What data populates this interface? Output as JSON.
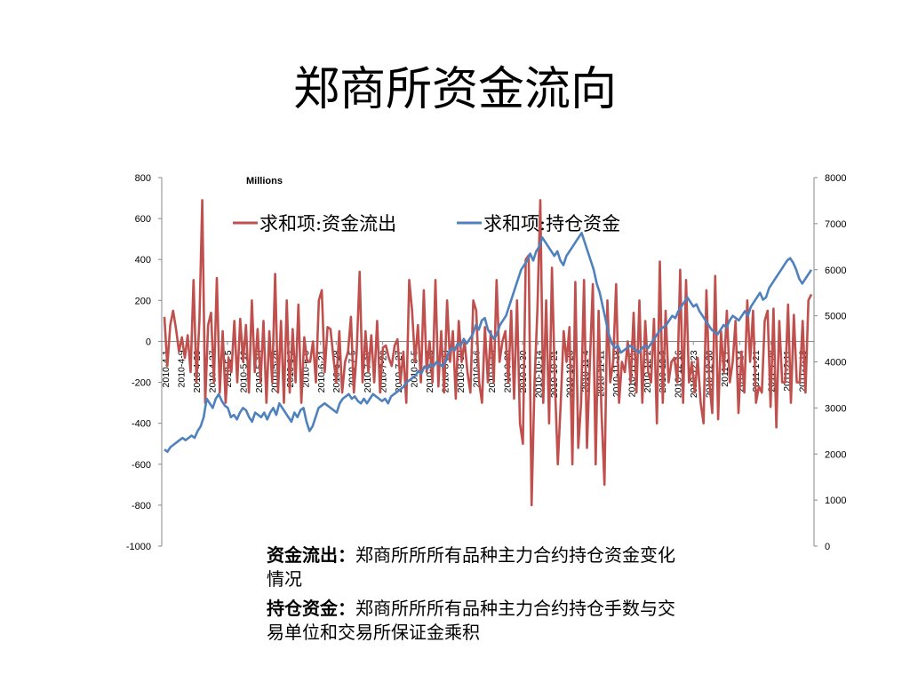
{
  "slide": {
    "title": "郑商所资金流向",
    "notes": [
      {
        "term": "资金流出：",
        "text": "郑商所所所有品种主力合约持仓资金变化情况"
      },
      {
        "term": "持仓资金：",
        "text": "郑商所所所有品种主力合约持仓手数与交易单位和交易所保证金乘积"
      }
    ]
  },
  "chart_data": {
    "type": "line",
    "unit_label": "Millions",
    "y_left": {
      "min": -1000,
      "max": 800,
      "step": 200,
      "ticks": [
        800,
        600,
        400,
        200,
        0,
        -200,
        -400,
        -600,
        -800,
        -1000
      ]
    },
    "y_right": {
      "min": 0,
      "max": 8000,
      "step": 1000,
      "ticks": [
        8000,
        7000,
        6000,
        5000,
        4000,
        3000,
        2000,
        1000,
        0
      ]
    },
    "x_ticks": [
      "2010-4-1",
      "2010-4-9",
      "2010-4-20",
      "2010-4-27",
      "2010-5-5",
      "2010-5-12",
      "2010-5-19",
      "2010-5-26",
      "2010-6-2",
      "2010-6-9",
      "2010-6-21",
      "2010-6-28",
      "2010-7-5",
      "2010-7-12",
      "2010-7-20",
      "2010-7-27",
      "2010-8-5",
      "2010-8-16",
      "2010-8-23",
      "2010-8-30",
      "2010-9-6",
      "2010-9-13",
      "2010-9-20",
      "2010-9-30",
      "2010-10-14",
      "2010-10-21",
      "2010-10-28",
      "2010-11-4",
      "2010-11-11",
      "2010-11-18",
      "2010-11-25",
      "2010-12-2",
      "2010-12-9",
      "2010-12-16",
      "2010-12-23",
      "2010-12-30",
      "2011-1-7",
      "2011-1-14",
      "2011-1-21",
      "2011-1-28",
      "2011-2-11",
      "2011-2-18"
    ],
    "legend_position": "top",
    "series": [
      {
        "name": "求和项:资金流出",
        "axis": "left",
        "color": "#c0504d",
        "values": [
          120,
          -120,
          80,
          150,
          60,
          -50,
          20,
          -80,
          30,
          -150,
          300,
          -200,
          100,
          690,
          -300,
          80,
          140,
          -200,
          310,
          -250,
          50,
          -300,
          -80,
          -150,
          100,
          -200,
          110,
          -100,
          80,
          -250,
          200,
          -150,
          60,
          -200,
          100,
          -300,
          50,
          -200,
          330,
          -250,
          100,
          -300,
          200,
          -250,
          60,
          -200,
          180,
          -300,
          20,
          -100,
          -100,
          0,
          -200,
          200,
          250,
          -150,
          70,
          60,
          -80,
          -200,
          50,
          -250,
          -100,
          -50,
          120,
          -250,
          -50,
          340,
          -200,
          50,
          -150,
          30,
          -200,
          100,
          -250,
          -30,
          -20,
          -80,
          -120,
          -20,
          10,
          -200,
          -50,
          -300,
          300,
          150,
          -100,
          80,
          -200,
          250,
          -150,
          0,
          -200,
          300,
          -220,
          50,
          -250,
          200,
          -100,
          50,
          -280,
          100,
          -100,
          0,
          -150,
          -250,
          200,
          150,
          -200,
          -300,
          70,
          -200,
          50,
          -200,
          300,
          -100,
          0,
          50,
          -200,
          150,
          -280,
          200,
          -400,
          -500,
          400,
          420,
          -800,
          -200,
          150,
          690,
          -300,
          200,
          -400,
          360,
          -200,
          -600,
          -300,
          50,
          -100,
          70,
          -600,
          290,
          -520,
          -300,
          300,
          -520,
          -100,
          280,
          -600,
          150,
          -350,
          -700,
          200,
          -200,
          -100,
          280,
          -300,
          -100,
          -150,
          0,
          -200,
          140,
          -250,
          200,
          -300,
          100,
          -150,
          -200,
          110,
          -400,
          390,
          -300,
          150,
          -200,
          -100,
          -80,
          -200,
          350,
          -300,
          300,
          -200,
          -100,
          -250,
          -80,
          -300,
          -400,
          250,
          -200,
          -350,
          320,
          -380,
          50,
          -150,
          150,
          -200,
          -100,
          100,
          -350,
          -50,
          -250,
          200,
          -100,
          150,
          -300,
          -220,
          -250,
          100,
          150,
          -320,
          160,
          -420,
          100,
          -200,
          -200,
          180,
          -300,
          130,
          -200,
          -200,
          100,
          -250,
          200,
          230
        ]
      },
      {
        "name": "求和项:持仓资金",
        "axis": "right",
        "color": "#4f81bd",
        "values": [
          2100,
          2050,
          2150,
          2200,
          2250,
          2300,
          2350,
          2300,
          2350,
          2400,
          2350,
          2500,
          2600,
          2800,
          3200,
          3100,
          3000,
          3200,
          3300,
          3150,
          3050,
          3000,
          2800,
          2850,
          2750,
          2900,
          3000,
          2950,
          2800,
          2700,
          2900,
          2850,
          2800,
          2900,
          2750,
          2900,
          3000,
          2850,
          3100,
          3000,
          2900,
          2800,
          2700,
          2900,
          2800,
          2950,
          3000,
          2700,
          2500,
          2600,
          2800,
          3000,
          3050,
          3100,
          3050,
          3000,
          2950,
          2900,
          3100,
          3200,
          3250,
          3300,
          3200,
          3250,
          3150,
          3100,
          3200,
          3100,
          3200,
          3300,
          3250,
          3200,
          3150,
          3200,
          3100,
          3250,
          3300,
          3350,
          3400,
          3450,
          3550,
          3600,
          3650,
          3700,
          3800,
          3750,
          3900,
          3850,
          3950,
          3900,
          4000,
          3950,
          3900,
          4000,
          4200,
          4300,
          4250,
          4400,
          4350,
          4500,
          4400,
          4500,
          4600,
          4800,
          4700,
          4900,
          4950,
          4700,
          4600,
          4500,
          4600,
          4800,
          4900,
          5000,
          5200,
          5400,
          5600,
          5800,
          6000,
          6100,
          6200,
          6350,
          6200,
          6400,
          6500,
          6700,
          6600,
          6500,
          6400,
          6300,
          6400,
          6200,
          6100,
          6300,
          6400,
          6500,
          6600,
          6700,
          6800,
          6600,
          6400,
          6200,
          6000,
          5700,
          5500,
          5200,
          4900,
          4600,
          4400,
          4300,
          4350,
          4200,
          4250,
          4300,
          4350,
          4300,
          4250,
          4200,
          4300,
          4350,
          4300,
          4400,
          4500,
          4600,
          4700,
          4750,
          4800,
          4900,
          5000,
          4950,
          5100,
          5200,
          5300,
          5400,
          5300,
          5200,
          5250,
          5100,
          5000,
          4900,
          4800,
          4700,
          4650,
          4600,
          4700,
          4800,
          4750,
          4900,
          5000,
          4950,
          4900,
          5000,
          5100,
          5000,
          5200,
          5300,
          5400,
          5500,
          5350,
          5400,
          5600,
          5700,
          5800,
          5900,
          6000,
          6100,
          6200,
          6250,
          6150,
          6000,
          5800,
          5700,
          5800,
          5900,
          6000
        ]
      }
    ]
  }
}
